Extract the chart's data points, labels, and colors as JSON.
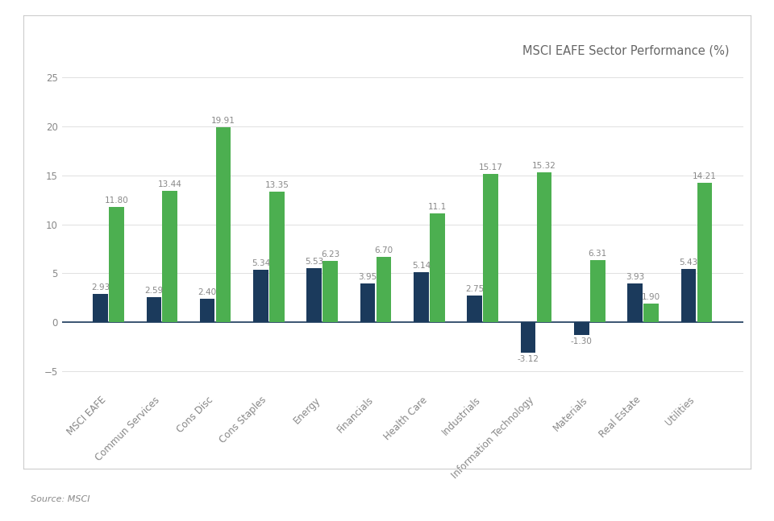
{
  "title": "MSCI EAFE Sector Performance (%)",
  "source": "Source: MSCI",
  "categories": [
    "MSCI EAFE",
    "Commun Services",
    "Cons Disc",
    "Cons Staples",
    "Energy",
    "Financials",
    "Health Care",
    "Industrials",
    "Information Technology",
    "Materials",
    "Real Estate",
    "Utilities"
  ],
  "one_month": [
    2.93,
    2.59,
    2.4,
    5.34,
    5.53,
    3.95,
    5.14,
    2.75,
    -3.12,
    -1.3,
    3.93,
    5.43
  ],
  "ytd": [
    11.8,
    13.44,
    19.91,
    13.35,
    6.23,
    6.7,
    11.1,
    15.17,
    15.32,
    6.31,
    1.9,
    14.21
  ],
  "labels_1month": [
    "2.93",
    "2.59",
    "2.40",
    "5.34",
    "5.53",
    "3.95",
    "5.14",
    "2.75",
    "-3.12",
    "-1.30",
    "3.93",
    "5.43"
  ],
  "labels_ytd": [
    "11.80",
    "13.44",
    "19.91",
    "13.35",
    "6.23",
    "6.70",
    "11.1",
    "15.17",
    "15.32",
    "6.31",
    "1.90",
    "14.21"
  ],
  "color_1month": "#1b3a5c",
  "color_ytd": "#4caf50",
  "zero_line_color": "#1b3a5c",
  "ylim_min": -7,
  "ylim_max": 26,
  "yticks": [
    -5,
    0,
    5,
    10,
    15,
    20,
    25
  ],
  "bar_width": 0.28,
  "figsize": [
    9.6,
    6.47
  ],
  "dpi": 100,
  "background_color": "#ffffff",
  "grid_color": "#e0e0e0",
  "title_fontsize": 10.5,
  "tick_fontsize": 8.5,
  "annotation_fontsize": 7.5,
  "legend_fontsize": 9,
  "source_fontsize": 8,
  "border_color": "#cccccc"
}
